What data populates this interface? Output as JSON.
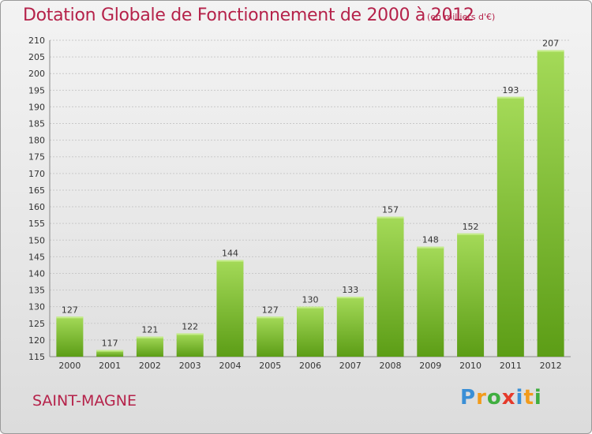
{
  "header": {
    "title": "Dotation Globale de Fonctionnement de 2000 à 2012",
    "units": "(en milliers d'€)"
  },
  "footer": {
    "commune": "SAINT-MAGNE",
    "logo": "Proxiti"
  },
  "colors": {
    "title": "#b5224a",
    "bar_light": "#9ed552",
    "bar_dark": "#5c9d16"
  },
  "chart_data": {
    "type": "bar",
    "title": "Dotation Globale de Fonctionnement de 2000 à 2012",
    "xlabel": "",
    "ylabel": "",
    "categories": [
      "2000",
      "2001",
      "2002",
      "2003",
      "2004",
      "2005",
      "2006",
      "2007",
      "2008",
      "2009",
      "2010",
      "2011",
      "2012"
    ],
    "values": [
      127,
      117,
      121,
      122,
      144,
      127,
      130,
      133,
      157,
      148,
      152,
      193,
      207
    ],
    "ylim": [
      115,
      210
    ],
    "yticks": [
      115,
      120,
      125,
      130,
      135,
      140,
      145,
      150,
      155,
      160,
      165,
      170,
      175,
      180,
      185,
      190,
      195,
      200,
      205,
      210
    ],
    "grid": true,
    "legend": "none"
  }
}
